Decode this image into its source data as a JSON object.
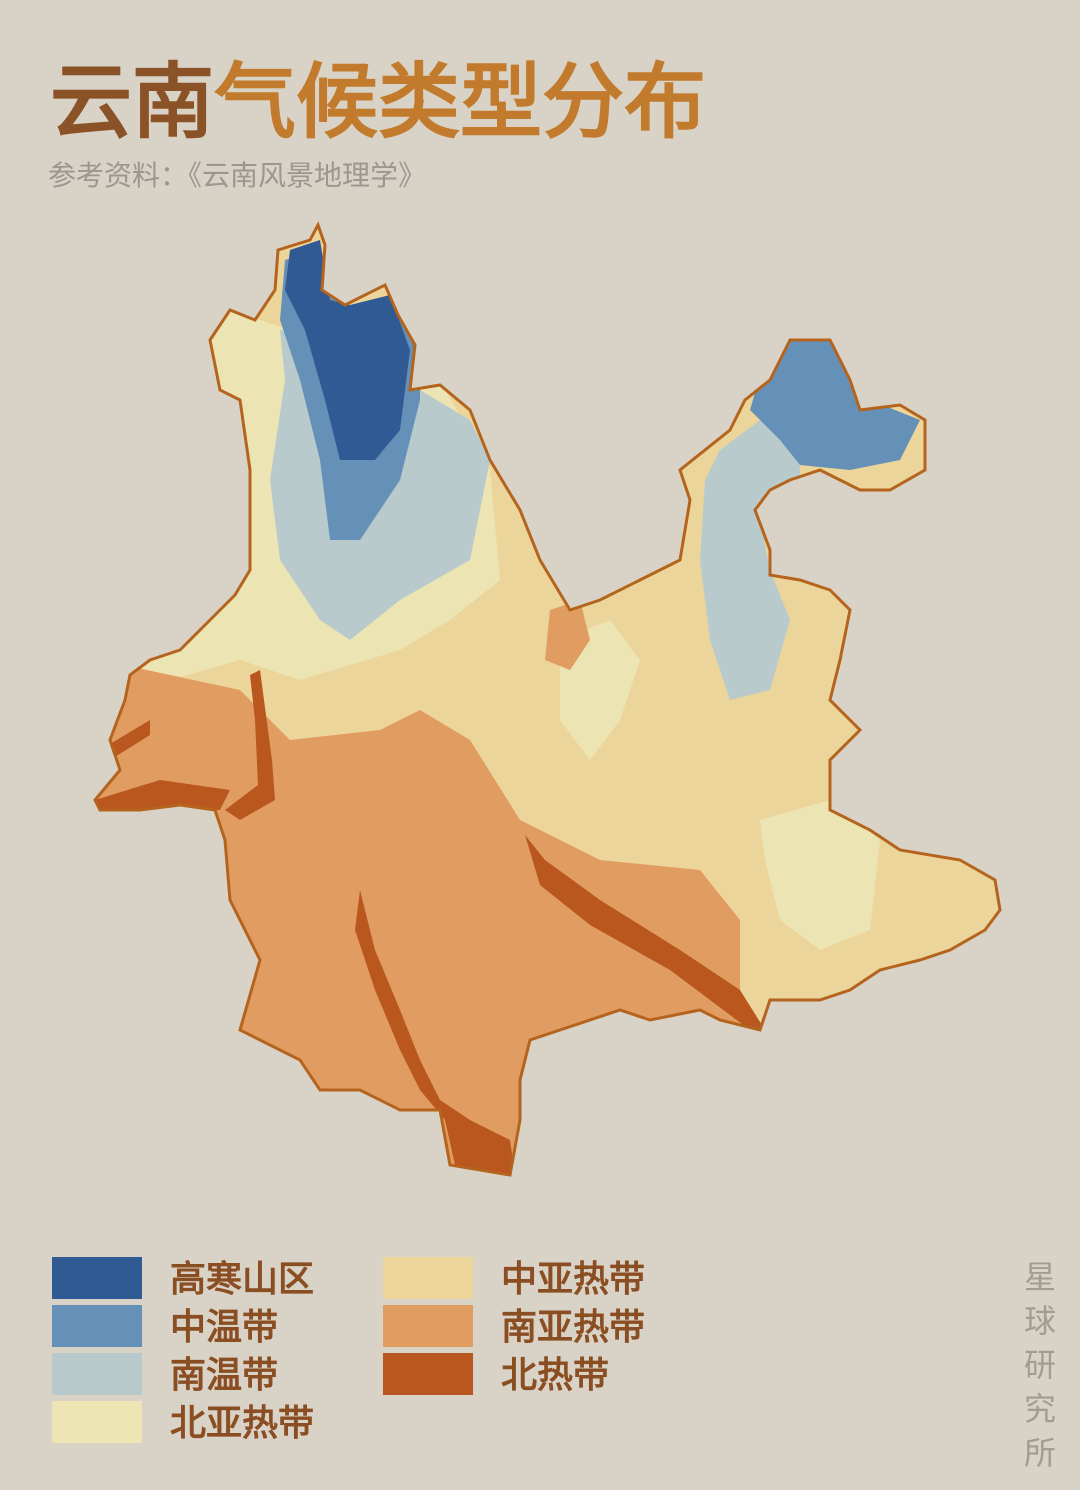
{
  "header": {
    "title_lead": "云南",
    "title_rest": "气候类型分布",
    "source": "参考资料：《云南风景地理学》"
  },
  "legend": [
    {
      "name": "高寒山区",
      "color": "#2f5a93"
    },
    {
      "name": "中温带",
      "color": "#6590b8"
    },
    {
      "name": "南温带",
      "color": "#b9cacd"
    },
    {
      "name": "北亚热带",
      "color": "#ede4b4"
    },
    {
      "name": "中亚热带",
      "color": "#ecd59a"
    },
    {
      "name": "南亚热带",
      "color": "#e19c62"
    },
    {
      "name": "北热带",
      "color": "#b9571f"
    }
  ],
  "watermark": [
    "星",
    "球",
    "研",
    "究",
    "所"
  ]
}
